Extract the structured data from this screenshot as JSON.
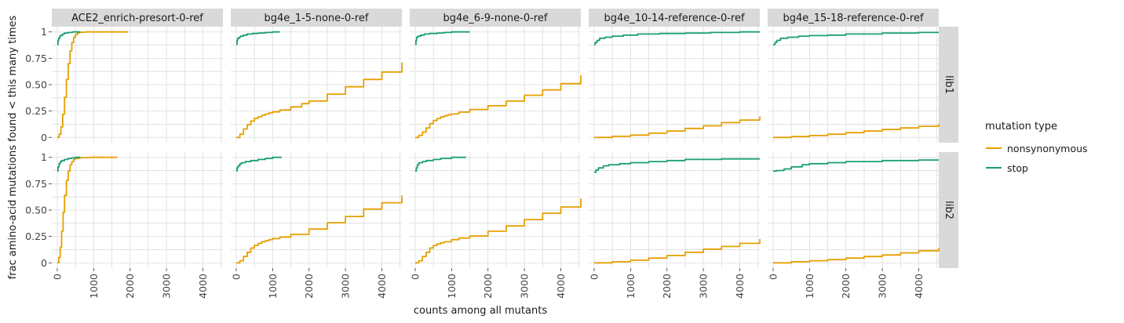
{
  "chart_data": {
    "type": "line",
    "subtype": "facetted step ECDF-style curves",
    "xlabel": "counts among all mutants",
    "ylabel": "frac amino-acid mutations found < this many times",
    "xlim": [
      -150,
      4550
    ],
    "ylim": [
      -0.05,
      1.05
    ],
    "x_ticks": [
      0,
      1000,
      2000,
      3000,
      4000
    ],
    "x_tick_labels": [
      "0",
      "1000",
      "2000",
      "3000",
      "4000"
    ],
    "y_ticks": [
      0,
      0.25,
      0.5,
      0.75,
      1
    ],
    "y_tick_labels": [
      "0",
      "0.25",
      "0.50",
      "0.75",
      "1"
    ],
    "grid": true,
    "legend": {
      "title": "mutation type",
      "position": "right",
      "entries": [
        {
          "label": "nonsynonymous",
          "color": "#E69F00"
        },
        {
          "label": "stop",
          "color": "#1B9E77"
        }
      ]
    },
    "columns": [
      "ACE2_enrich-presort-0-ref",
      "bg4e_1-5-none-0-ref",
      "bg4e_6-9-none-0-ref",
      "bg4e_10-14-reference-0-ref",
      "bg4e_15-18-reference-0-ref"
    ],
    "rows": [
      "lib1",
      "lib2"
    ],
    "panels": [
      {
        "row": "lib1",
        "column": "ACE2_enrich-presort-0-ref",
        "series": [
          {
            "name": "nonsynonymous",
            "x": [
              0,
              50,
              100,
              150,
              200,
              250,
              300,
              350,
              400,
              450,
              500,
              550,
              600,
              700,
              800,
              1000,
              1500,
              1950
            ],
            "y": [
              0,
              0.03,
              0.1,
              0.22,
              0.38,
              0.55,
              0.7,
              0.82,
              0.9,
              0.95,
              0.975,
              0.99,
              0.995,
              0.998,
              1,
              1,
              1,
              1
            ]
          },
          {
            "name": "stop",
            "x": [
              0,
              20,
              40,
              70,
              100,
              150,
              200,
              300,
              420,
              640
            ],
            "y": [
              0.88,
              0.92,
              0.94,
              0.96,
              0.97,
              0.98,
              0.99,
              0.995,
              1,
              1
            ]
          }
        ]
      },
      {
        "row": "lib1",
        "column": "bg4e_1-5-none-0-ref",
        "series": [
          {
            "name": "nonsynonymous",
            "x": [
              0,
              100,
              200,
              300,
              400,
              500,
              600,
              700,
              800,
              900,
              1000,
              1200,
              1500,
              1800,
              2000,
              2500,
              3000,
              3500,
              4000,
              4550
            ],
            "y": [
              0,
              0.03,
              0.08,
              0.12,
              0.155,
              0.18,
              0.195,
              0.21,
              0.222,
              0.232,
              0.242,
              0.26,
              0.29,
              0.32,
              0.345,
              0.41,
              0.48,
              0.55,
              0.62,
              0.71
            ]
          },
          {
            "name": "stop",
            "x": [
              0,
              20,
              40,
              80,
              120,
              200,
              300,
              450,
              600,
              800,
              1000,
              1200
            ],
            "y": [
              0.88,
              0.92,
              0.94,
              0.95,
              0.96,
              0.97,
              0.98,
              0.985,
              0.99,
              0.995,
              1,
              1
            ]
          }
        ]
      },
      {
        "row": "lib1",
        "column": "bg4e_6-9-none-0-ref",
        "series": [
          {
            "name": "nonsynonymous",
            "x": [
              0,
              100,
              200,
              300,
              400,
              500,
              600,
              700,
              800,
              900,
              1000,
              1200,
              1500,
              2000,
              2500,
              3000,
              3500,
              4000,
              4550
            ],
            "y": [
              0,
              0.02,
              0.05,
              0.09,
              0.13,
              0.16,
              0.18,
              0.195,
              0.205,
              0.215,
              0.222,
              0.24,
              0.265,
              0.3,
              0.345,
              0.4,
              0.45,
              0.51,
              0.59
            ]
          },
          {
            "name": "stop",
            "x": [
              0,
              20,
              40,
              80,
              150,
              250,
              400,
              600,
              800,
              1000,
              1500
            ],
            "y": [
              0.88,
              0.92,
              0.95,
              0.96,
              0.97,
              0.98,
              0.985,
              0.99,
              0.995,
              1,
              1
            ]
          }
        ]
      },
      {
        "row": "lib1",
        "column": "bg4e_10-14-reference-0-ref",
        "series": [
          {
            "name": "nonsynonymous",
            "x": [
              0,
              500,
              1000,
              1500,
              2000,
              2500,
              3000,
              3500,
              4000,
              4550
            ],
            "y": [
              0,
              0.01,
              0.022,
              0.04,
              0.06,
              0.085,
              0.11,
              0.14,
              0.165,
              0.2
            ]
          },
          {
            "name": "stop",
            "x": [
              0,
              30,
              80,
              150,
              300,
              500,
              800,
              1200,
              1800,
              2500,
              3200,
              4000,
              4550
            ],
            "y": [
              0.88,
              0.9,
              0.92,
              0.94,
              0.95,
              0.96,
              0.97,
              0.98,
              0.985,
              0.99,
              0.995,
              1,
              1
            ]
          }
        ]
      },
      {
        "row": "lib1",
        "column": "bg4e_15-18-reference-0-ref",
        "series": [
          {
            "name": "nonsynonymous",
            "x": [
              0,
              500,
              1000,
              1500,
              2000,
              2500,
              3000,
              3500,
              4000,
              4550
            ],
            "y": [
              0,
              0.008,
              0.018,
              0.03,
              0.045,
              0.06,
              0.075,
              0.09,
              0.105,
              0.125
            ]
          },
          {
            "name": "stop",
            "x": [
              0,
              50,
              100,
              200,
              400,
              700,
              1000,
              1500,
              2000,
              3000,
              4000,
              4550
            ],
            "y": [
              0.88,
              0.9,
              0.92,
              0.94,
              0.95,
              0.96,
              0.965,
              0.97,
              0.98,
              0.99,
              0.995,
              0.995
            ]
          }
        ]
      },
      {
        "row": "lib2",
        "column": "ACE2_enrich-presort-0-ref",
        "series": [
          {
            "name": "nonsynonymous",
            "x": [
              0,
              40,
              80,
              120,
              160,
              200,
              250,
              300,
              350,
              400,
              450,
              500,
              600,
              700,
              900,
              1200,
              1650
            ],
            "y": [
              0,
              0.05,
              0.15,
              0.3,
              0.48,
              0.64,
              0.78,
              0.87,
              0.93,
              0.96,
              0.98,
              0.99,
              0.995,
              0.998,
              1,
              1,
              1
            ]
          },
          {
            "name": "stop",
            "x": [
              0,
              20,
              50,
              80,
              120,
              200,
              300,
              400,
              500,
              640
            ],
            "y": [
              0.87,
              0.91,
              0.94,
              0.96,
              0.97,
              0.98,
              0.99,
              0.995,
              1,
              1
            ]
          }
        ]
      },
      {
        "row": "lib2",
        "column": "bg4e_1-5-none-0-ref",
        "series": [
          {
            "name": "nonsynonymous",
            "x": [
              0,
              100,
              200,
              300,
              400,
              500,
              600,
              700,
              800,
              900,
              1000,
              1200,
              1500,
              2000,
              2500,
              3000,
              3500,
              4000,
              4550
            ],
            "y": [
              0,
              0.02,
              0.06,
              0.1,
              0.14,
              0.165,
              0.185,
              0.2,
              0.21,
              0.22,
              0.23,
              0.245,
              0.27,
              0.32,
              0.38,
              0.44,
              0.51,
              0.57,
              0.64
            ]
          },
          {
            "name": "stop",
            "x": [
              0,
              20,
              50,
              100,
              150,
              250,
              400,
              600,
              800,
              1000,
              1250
            ],
            "y": [
              0.87,
              0.9,
              0.92,
              0.94,
              0.95,
              0.96,
              0.97,
              0.98,
              0.99,
              1,
              1
            ]
          }
        ]
      },
      {
        "row": "lib2",
        "column": "bg4e_6-9-none-0-ref",
        "series": [
          {
            "name": "nonsynonymous",
            "x": [
              0,
              100,
              200,
              300,
              400,
              500,
              600,
              700,
              800,
              1000,
              1200,
              1500,
              2000,
              2500,
              3000,
              3500,
              4000,
              4550
            ],
            "y": [
              0,
              0.02,
              0.06,
              0.1,
              0.14,
              0.165,
              0.18,
              0.19,
              0.2,
              0.22,
              0.235,
              0.255,
              0.3,
              0.35,
              0.41,
              0.47,
              0.53,
              0.61
            ]
          },
          {
            "name": "stop",
            "x": [
              0,
              30,
              60,
              100,
              200,
              300,
              500,
              700,
              1000,
              1400
            ],
            "y": [
              0.87,
              0.9,
              0.93,
              0.95,
              0.96,
              0.97,
              0.98,
              0.99,
              1,
              1
            ]
          }
        ]
      },
      {
        "row": "lib2",
        "column": "bg4e_10-14-reference-0-ref",
        "series": [
          {
            "name": "nonsynonymous",
            "x": [
              0,
              500,
              1000,
              1500,
              2000,
              2500,
              3000,
              3500,
              4000,
              4550
            ],
            "y": [
              0,
              0.01,
              0.025,
              0.045,
              0.07,
              0.1,
              0.13,
              0.155,
              0.185,
              0.225
            ]
          },
          {
            "name": "stop",
            "x": [
              0,
              50,
              120,
              250,
              400,
              700,
              1000,
              1500,
              2000,
              2500,
              3500,
              4550
            ],
            "y": [
              0.86,
              0.88,
              0.9,
              0.92,
              0.93,
              0.94,
              0.95,
              0.96,
              0.97,
              0.98,
              0.985,
              0.985
            ]
          }
        ]
      },
      {
        "row": "lib2",
        "column": "bg4e_15-18-reference-0-ref",
        "series": [
          {
            "name": "nonsynonymous",
            "x": [
              0,
              500,
              1000,
              1500,
              2000,
              2500,
              3000,
              3500,
              4000,
              4550
            ],
            "y": [
              0,
              0.01,
              0.02,
              0.03,
              0.045,
              0.06,
              0.075,
              0.095,
              0.115,
              0.14
            ]
          },
          {
            "name": "stop",
            "x": [
              0,
              100,
              300,
              500,
              800,
              1000,
              1500,
              2000,
              3000,
              4000,
              4550
            ],
            "y": [
              0.87,
              0.875,
              0.89,
              0.91,
              0.93,
              0.94,
              0.95,
              0.96,
              0.97,
              0.975,
              0.975
            ]
          }
        ]
      }
    ]
  }
}
